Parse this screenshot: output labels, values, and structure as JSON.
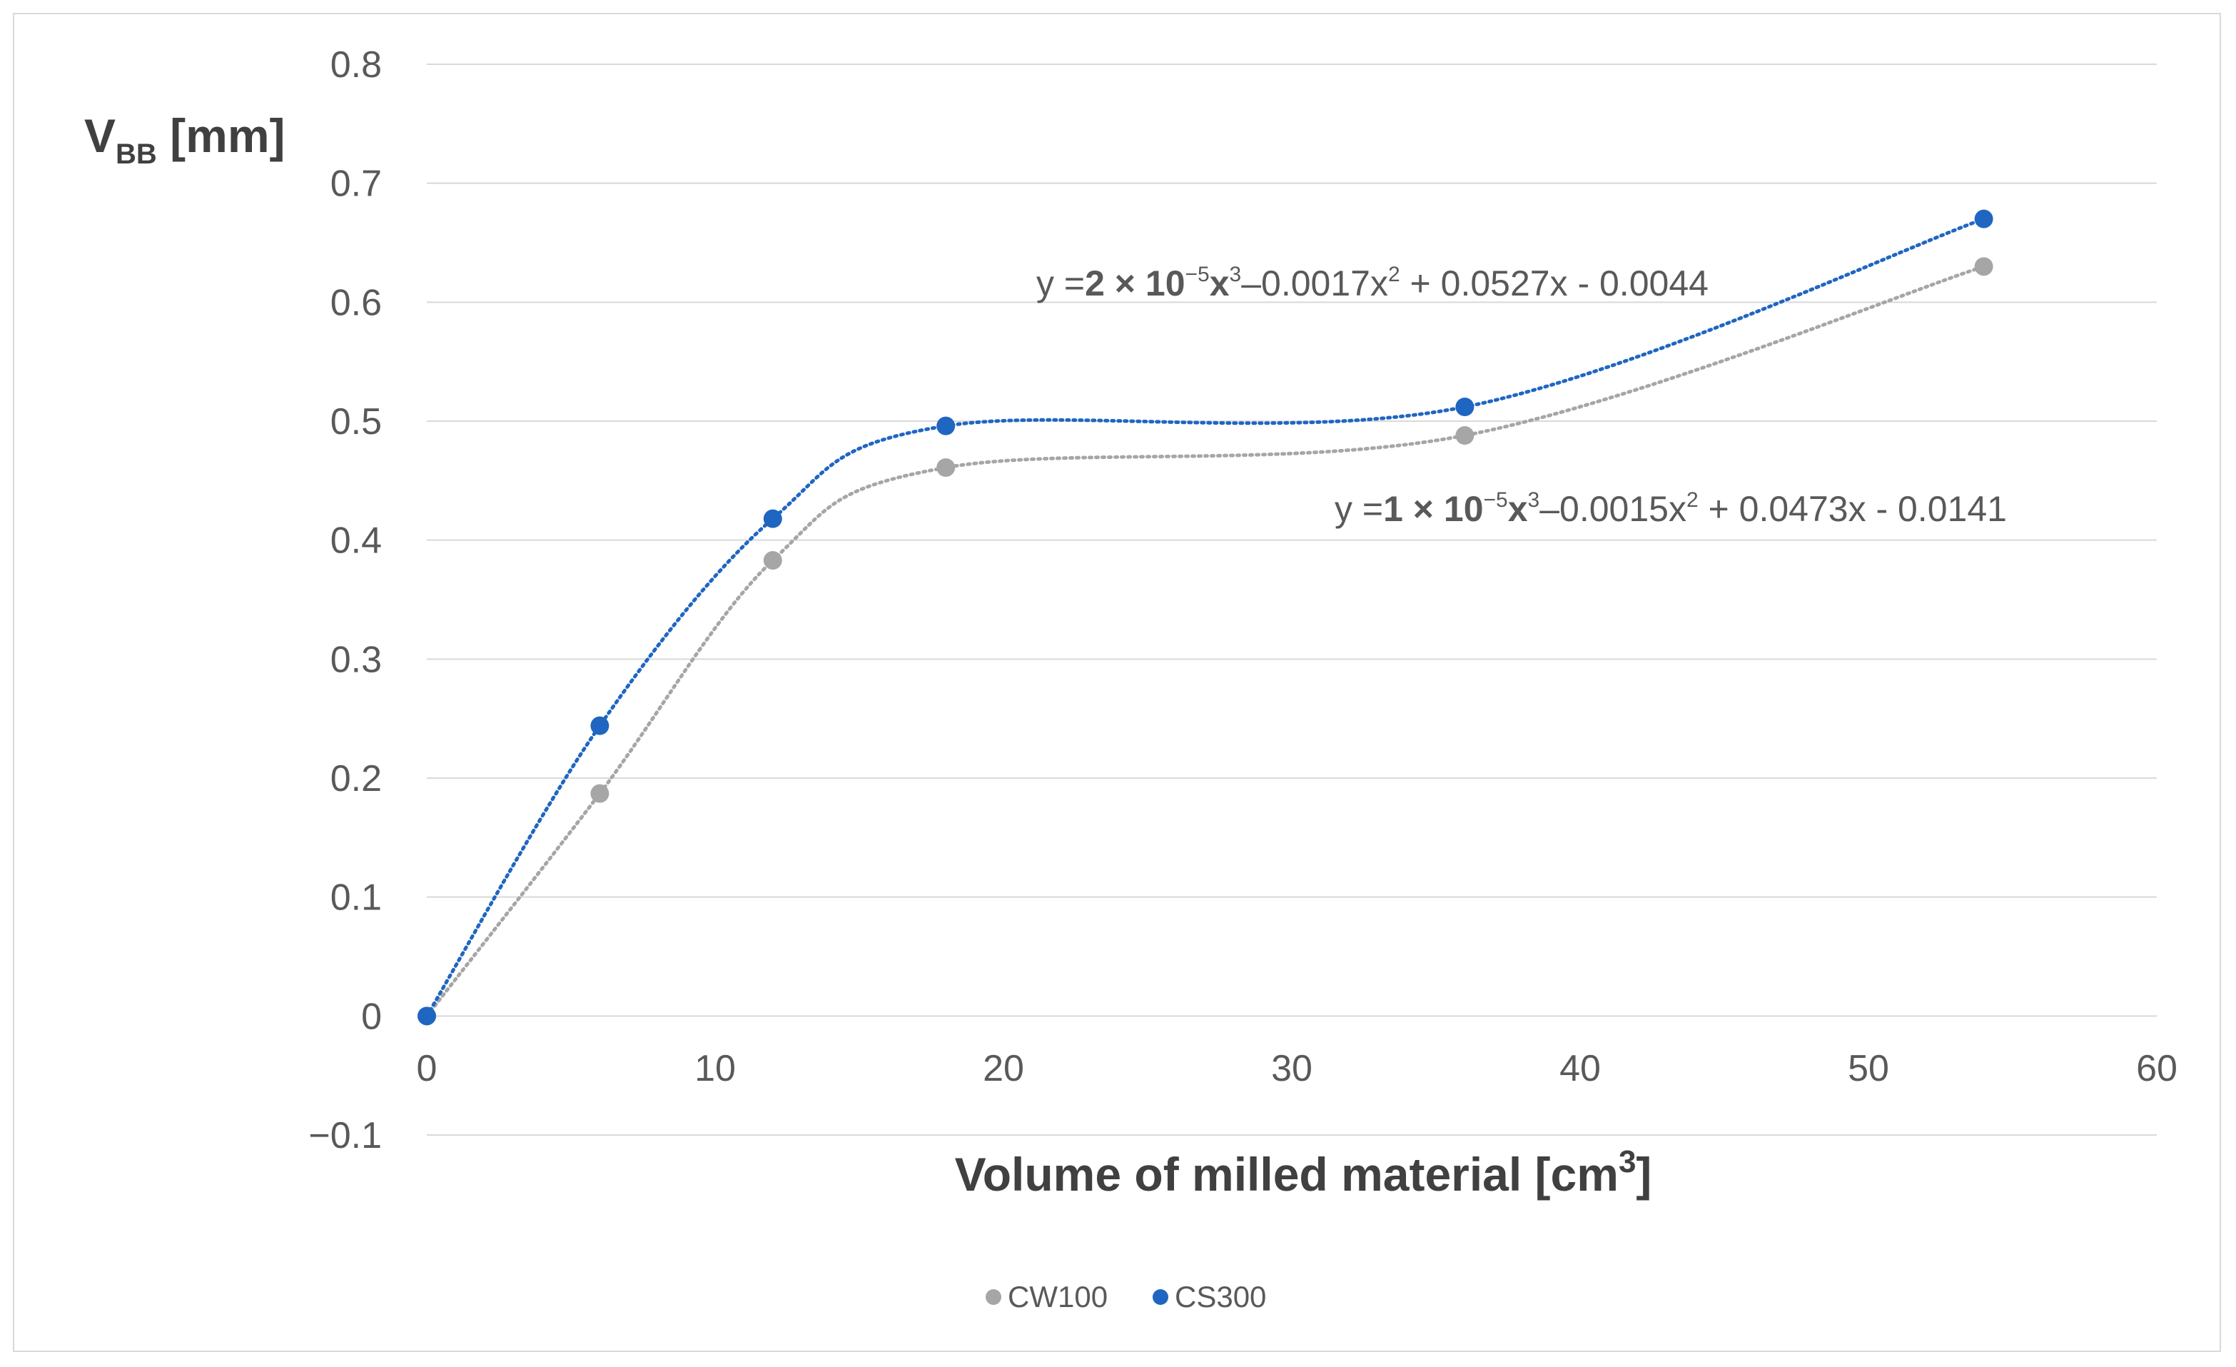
{
  "chart_data": {
    "type": "scatter",
    "title": "",
    "xlabel": "Volume of milled material [cm",
    "xlabel_sup": "3",
    "xlabel_end": "]",
    "ylabel_main": "V",
    "ylabel_sub": "BB",
    "ylabel_rest": " [mm]",
    "xlim": [
      0,
      60
    ],
    "ylim": [
      -0.1,
      0.8
    ],
    "x_ticks": [
      "0",
      "10",
      "20",
      "30",
      "40",
      "50",
      "60"
    ],
    "y_ticks": [
      "−0.1",
      "0",
      "0.1",
      "0.2",
      "0.3",
      "0.4",
      "0.5",
      "0.6",
      "0.7",
      "0.8"
    ],
    "grid": true,
    "legend_position": "bottom",
    "series": [
      {
        "name": "CW100",
        "color": "#a6a6a6",
        "x": [
          0,
          6,
          12,
          18,
          36,
          54
        ],
        "y": [
          0.0,
          0.187,
          0.383,
          0.461,
          0.488,
          0.63
        ],
        "trendline": {
          "type": "polynomial-3",
          "coefficients": [
            1e-05,
            -0.0015,
            0.0473,
            -0.0141
          ],
          "equation": {
            "prefix": "y =",
            "coef": "1 × 10",
            "exp": "−5",
            "x3": "x",
            "x3_exp": "3",
            "rest": "–0.0015x",
            "rest_exp": "2",
            "tail": " + 0.0473x  - 0.0141"
          }
        }
      },
      {
        "name": "CS300",
        "color": "#1f66c1",
        "x": [
          0,
          6,
          12,
          18,
          36,
          54
        ],
        "y": [
          0.0,
          0.244,
          0.418,
          0.496,
          0.512,
          0.67
        ],
        "trendline": {
          "type": "polynomial-3",
          "coefficients": [
            2e-05,
            -0.0017,
            0.0527,
            -0.0044
          ],
          "equation": {
            "prefix": "y =",
            "coef": "2 × 10",
            "exp": "−5",
            "x3": "x",
            "x3_exp": "3",
            "rest": "–0.0017x",
            "rest_exp": "2",
            "tail": " + 0.0527x  - 0.0044"
          }
        }
      }
    ]
  }
}
